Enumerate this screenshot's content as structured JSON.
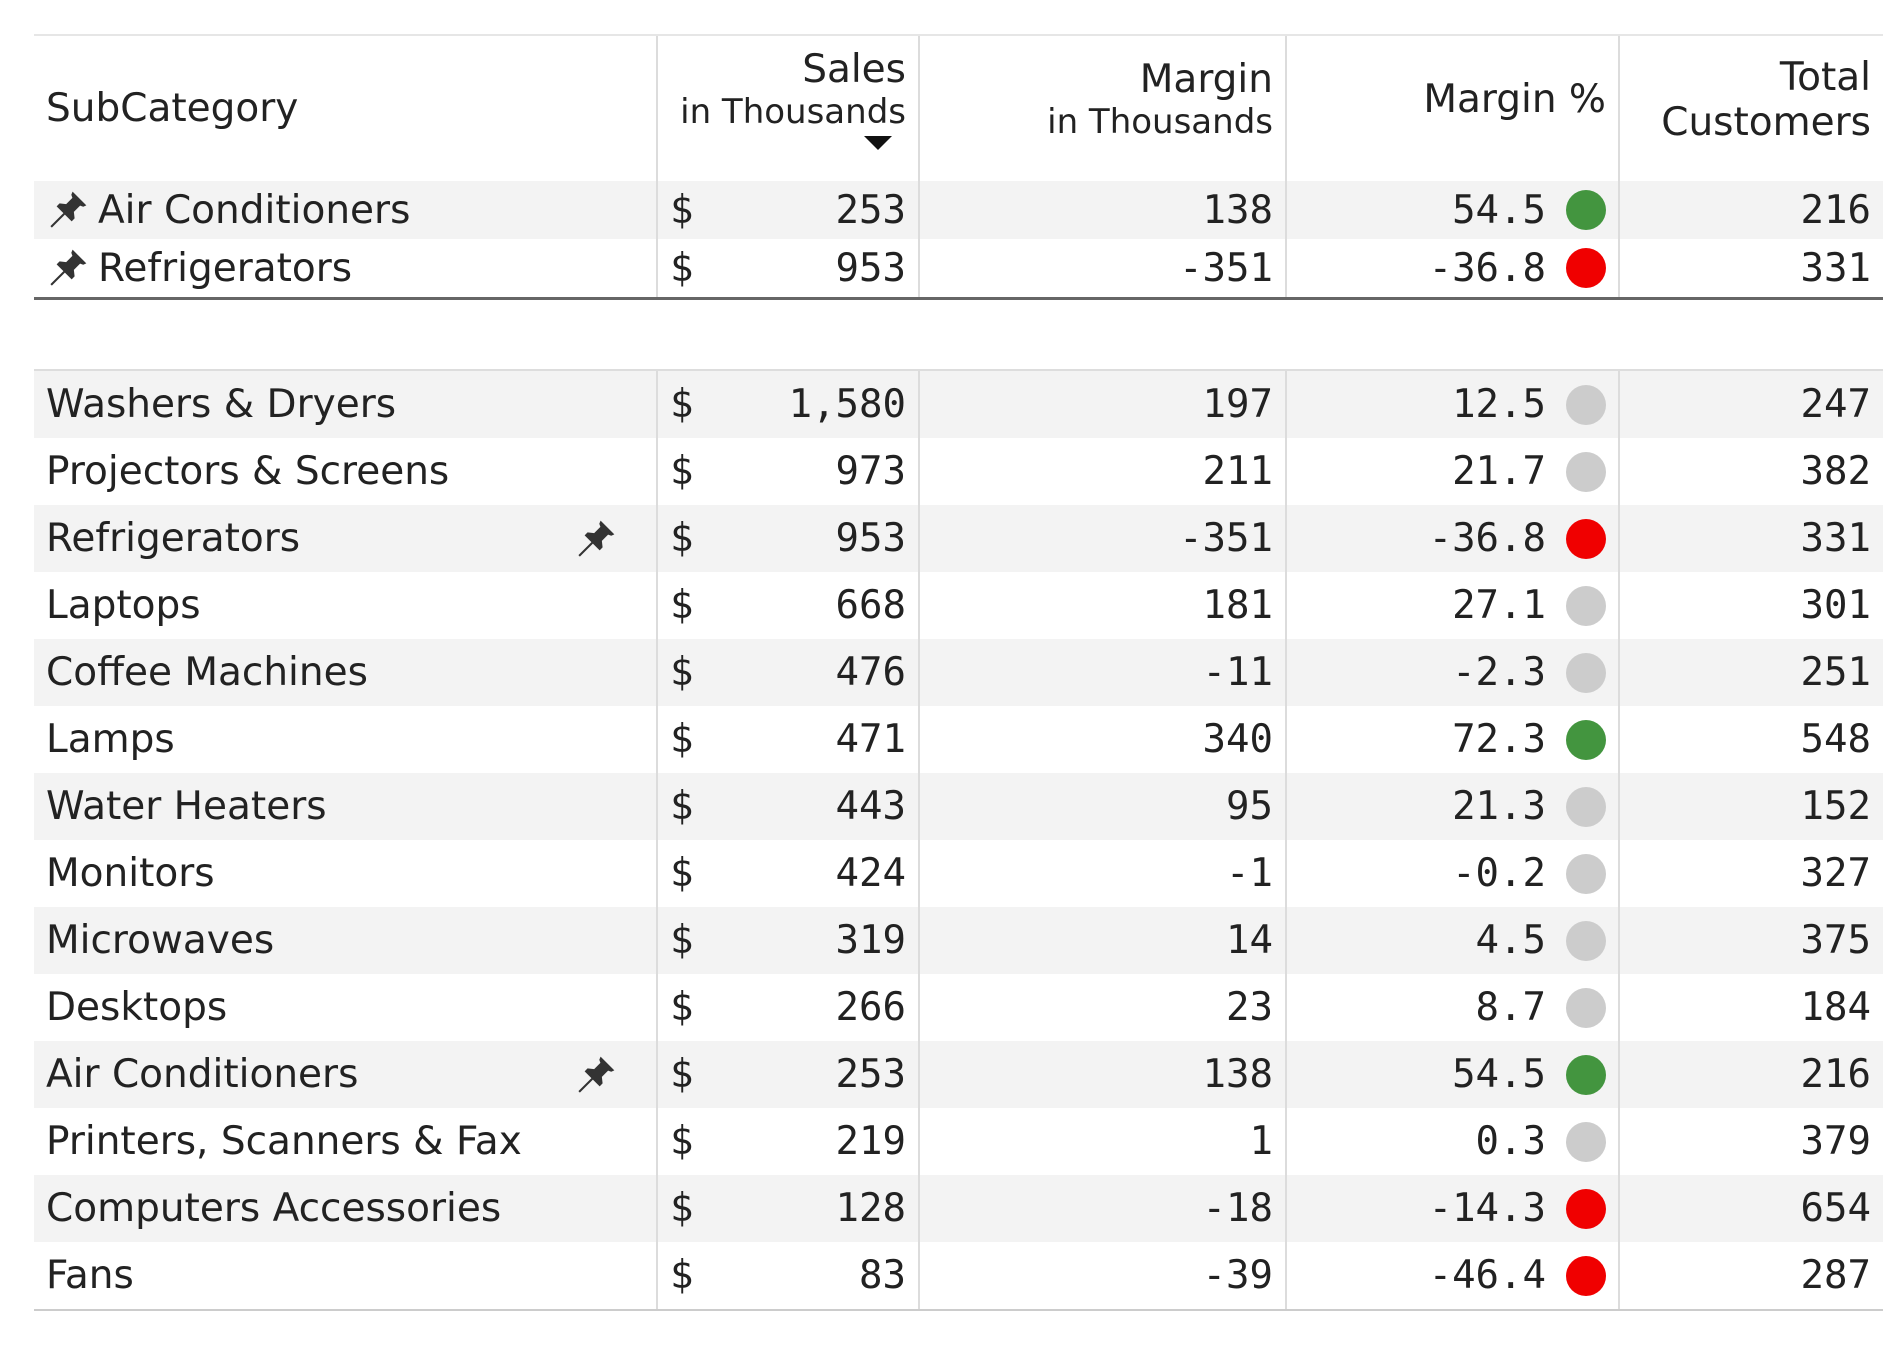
{
  "header": {
    "subcategory": "SubCategory",
    "sales": "Sales",
    "sales_unit": "in Thousands",
    "margin": "Margin",
    "margin_unit": "in Thousands",
    "margin_pct": "Margin %",
    "customers": "Total Customers"
  },
  "currency": "$",
  "pinned_rows": [
    {
      "name": "Air Conditioners",
      "sales": "253",
      "margin": "138",
      "margin_pct": "54.5",
      "status": "#43953f",
      "customers": "216"
    },
    {
      "name": "Refrigerators",
      "sales": "953",
      "margin": "-351",
      "margin_pct": "-36.8",
      "status": "#f00000",
      "customers": "331"
    }
  ],
  "rows": [
    {
      "name": "Washers & Dryers",
      "sales": "1,580",
      "margin": "197",
      "margin_pct": "12.5",
      "status": "#cccccc",
      "customers": "247",
      "pinned": false
    },
    {
      "name": "Projectors & Screens",
      "sales": "973",
      "margin": "211",
      "margin_pct": "21.7",
      "status": "#cccccc",
      "customers": "382",
      "pinned": false
    },
    {
      "name": "Refrigerators",
      "sales": "953",
      "margin": "-351",
      "margin_pct": "-36.8",
      "status": "#f00000",
      "customers": "331",
      "pinned": true
    },
    {
      "name": "Laptops",
      "sales": "668",
      "margin": "181",
      "margin_pct": "27.1",
      "status": "#cccccc",
      "customers": "301",
      "pinned": false
    },
    {
      "name": "Coffee Machines",
      "sales": "476",
      "margin": "-11",
      "margin_pct": "-2.3",
      "status": "#cccccc",
      "customers": "251",
      "pinned": false
    },
    {
      "name": "Lamps",
      "sales": "471",
      "margin": "340",
      "margin_pct": "72.3",
      "status": "#43953f",
      "customers": "548",
      "pinned": false
    },
    {
      "name": "Water Heaters",
      "sales": "443",
      "margin": "95",
      "margin_pct": "21.3",
      "status": "#cccccc",
      "customers": "152",
      "pinned": false
    },
    {
      "name": "Monitors",
      "sales": "424",
      "margin": "-1",
      "margin_pct": "-0.2",
      "status": "#cccccc",
      "customers": "327",
      "pinned": false
    },
    {
      "name": "Microwaves",
      "sales": "319",
      "margin": "14",
      "margin_pct": "4.5",
      "status": "#cccccc",
      "customers": "375",
      "pinned": false
    },
    {
      "name": "Desktops",
      "sales": "266",
      "margin": "23",
      "margin_pct": "8.7",
      "status": "#cccccc",
      "customers": "184",
      "pinned": false
    },
    {
      "name": "Air Conditioners",
      "sales": "253",
      "margin": "138",
      "margin_pct": "54.5",
      "status": "#43953f",
      "customers": "216",
      "pinned": true
    },
    {
      "name": "Printers, Scanners & Fax",
      "sales": "219",
      "margin": "1",
      "margin_pct": "0.3",
      "status": "#cccccc",
      "customers": "379",
      "pinned": false
    },
    {
      "name": "Computers Accessories",
      "sales": "128",
      "margin": "-18",
      "margin_pct": "-14.3",
      "status": "#f00000",
      "customers": "654",
      "pinned": false
    },
    {
      "name": "Fans",
      "sales": "83",
      "margin": "-39",
      "margin_pct": "-46.4",
      "status": "#f00000",
      "customers": "287",
      "pinned": false
    }
  ]
}
